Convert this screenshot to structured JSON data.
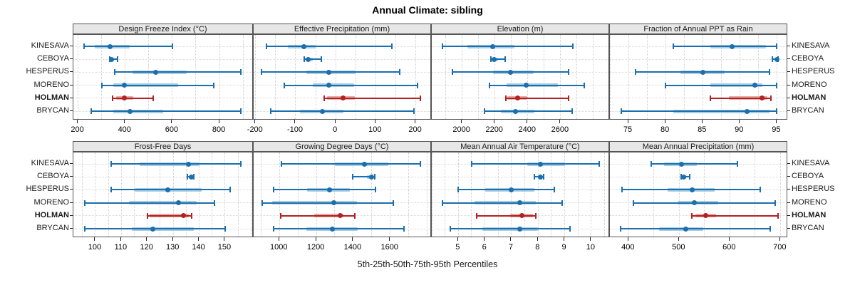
{
  "title": "Annual Climate: sibling",
  "x_caption": "5th-25th-50th-75th-95th Percentiles",
  "chart_data": {
    "type": "interval-dot-plot",
    "title": "Annual Climate: sibling",
    "xlabel": "5th-25th-50th-75th-95th Percentiles",
    "percentiles": [
      5,
      25,
      50,
      75,
      95
    ],
    "stations": [
      "KINESAVA",
      "CEBOYA",
      "HESPERUS",
      "MORENO",
      "HOLMAN",
      "BRYCAN"
    ],
    "highlight_station": "HOLMAN",
    "legend_position": "none",
    "grid": true,
    "colors": {
      "series_line": "#1b6fae",
      "series_band": "#a9cee3",
      "highlight_line": "#b22222",
      "highlight_band": "#e5aba5",
      "header_bg": "#e7e7e7",
      "panel_border": "#555555",
      "gridline": "#cfcfcf",
      "row_gridline": "#d9d9d9",
      "axis": "#222222"
    },
    "panels": [
      {
        "title": "Design Freeze Index (°C)",
        "row": 0,
        "col": 0,
        "ticks": [
          200,
          400,
          600,
          800
        ],
        "range": [
          180,
          945
        ],
        "values": [
          [
            225,
            270,
            335,
            420,
            600
          ],
          [
            334,
            338,
            343,
            352,
            368
          ],
          [
            355,
            430,
            530,
            660,
            890
          ],
          [
            300,
            350,
            395,
            625,
            775
          ],
          [
            345,
            360,
            395,
            435,
            520
          ],
          [
            255,
            350,
            420,
            560,
            890
          ]
        ]
      },
      {
        "title": "Effective Precipitation (mm)",
        "row": 0,
        "col": 1,
        "ticks": [
          -200,
          -100,
          0,
          100,
          200
        ],
        "range": [
          -205,
          240
        ],
        "values": [
          [
            -173,
            -120,
            -80,
            -50,
            140
          ],
          [
            -79,
            -74,
            -69,
            -57,
            -36
          ],
          [
            -185,
            -73,
            -17,
            49,
            160
          ],
          [
            -128,
            -57,
            -18,
            46,
            204
          ],
          [
            -29,
            -22,
            19,
            48,
            211
          ],
          [
            -163,
            -89,
            -33,
            19,
            196
          ]
        ]
      },
      {
        "title": "Elevation (m)",
        "row": 0,
        "col": 2,
        "ticks": [
          2000,
          2200,
          2400,
          2600
        ],
        "range": [
          1815,
          2900
        ],
        "values": [
          [
            1880,
            2030,
            2185,
            2320,
            2675
          ],
          [
            2175,
            2182,
            2194,
            2218,
            2263
          ],
          [
            1940,
            2190,
            2295,
            2435,
            2650
          ],
          [
            2165,
            2270,
            2390,
            2585,
            2745
          ],
          [
            2265,
            2275,
            2340,
            2395,
            2650
          ],
          [
            2135,
            2235,
            2325,
            2440,
            2670
          ]
        ]
      },
      {
        "title": "Fraction of Annual PPT as Rain",
        "row": 0,
        "col": 3,
        "ticks": [
          75,
          80,
          85,
          90,
          95
        ],
        "range": [
          72.5,
          96.5
        ],
        "values": [
          [
            81,
            86,
            89,
            93.5,
            95
          ],
          [
            94.4,
            94.8,
            95,
            95.1,
            95.2
          ],
          [
            76,
            82,
            85,
            88,
            94
          ],
          [
            80,
            86,
            92,
            93,
            95
          ],
          [
            86,
            88.5,
            93,
            93.7,
            94.2
          ],
          [
            74,
            81,
            91,
            94,
            95
          ]
        ]
      },
      {
        "title": "Frost-Free Days",
        "row": 1,
        "col": 0,
        "ticks": [
          100,
          110,
          120,
          130,
          140,
          150
        ],
        "range": [
          91.5,
          161
        ],
        "values": [
          [
            106,
            117,
            136,
            140,
            156
          ],
          [
            135.5,
            136.5,
            137,
            137.5,
            138
          ],
          [
            106,
            115,
            128,
            141,
            152
          ],
          [
            96,
            113,
            132,
            139,
            146
          ],
          [
            120,
            121,
            134,
            136,
            137
          ],
          [
            96,
            114,
            122,
            138,
            150
          ]
        ]
      },
      {
        "title": "Growing Degree Days (°C)",
        "row": 1,
        "col": 1,
        "ticks": [
          1000,
          1200,
          1400,
          1600
        ],
        "range": [
          860,
          1825
        ],
        "values": [
          [
            1010,
            1300,
            1460,
            1590,
            1765
          ],
          [
            1395,
            1475,
            1500,
            1510,
            1515
          ],
          [
            970,
            1150,
            1270,
            1380,
            1520
          ],
          [
            905,
            960,
            1295,
            1420,
            1615
          ],
          [
            1005,
            1190,
            1330,
            1345,
            1410
          ],
          [
            970,
            1145,
            1285,
            1425,
            1675
          ]
        ]
      },
      {
        "title": "Mean Annual Air Temperature (°C)",
        "row": 1,
        "col": 2,
        "ticks": [
          5,
          6,
          7,
          8,
          9,
          10
        ],
        "range": [
          4.0,
          10.7
        ],
        "values": [
          [
            5.5,
            7.6,
            8.1,
            9.0,
            10.3
          ],
          [
            7.85,
            8.0,
            8.1,
            8.15,
            8.2
          ],
          [
            5.0,
            6.0,
            7.0,
            7.85,
            8.6
          ],
          [
            4.4,
            5.6,
            7.3,
            7.9,
            8.9
          ],
          [
            5.7,
            6.95,
            7.4,
            7.8,
            7.9
          ],
          [
            4.7,
            5.9,
            7.3,
            8.0,
            9.2
          ]
        ]
      },
      {
        "title": "Mean Annual Precipitation (mm)",
        "row": 1,
        "col": 3,
        "ticks": [
          400,
          500,
          600,
          700
        ],
        "range": [
          363,
          715
        ],
        "values": [
          [
            445,
            470,
            505,
            535,
            615
          ],
          [
            504,
            506,
            509,
            514,
            521
          ],
          [
            387,
            477,
            525,
            570,
            660
          ],
          [
            410,
            497,
            530,
            577,
            690
          ],
          [
            525,
            532,
            553,
            573,
            695
          ],
          [
            384,
            460,
            513,
            547,
            680
          ]
        ]
      }
    ]
  }
}
